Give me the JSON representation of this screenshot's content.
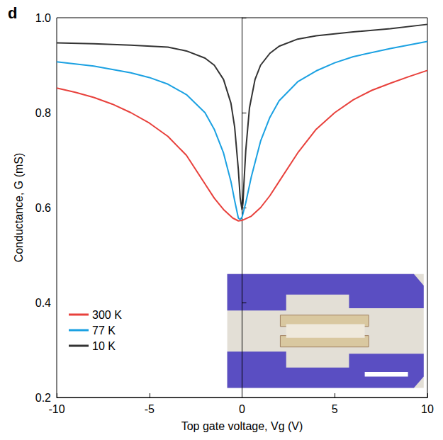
{
  "chart_data": {
    "type": "line",
    "panel_label": "d",
    "x_label": "Top gate voltage, Vg (V)",
    "y_label": "Conductance, G (mS)",
    "xlim": [
      -10,
      10
    ],
    "xticks": [
      -10,
      -5,
      0,
      5,
      10
    ],
    "ylim": [
      0.2,
      1.0
    ],
    "yticks": [
      0.2,
      0.4,
      0.6,
      0.8,
      {
        "value": 1.0,
        "label": "1.0"
      }
    ],
    "grid": false,
    "legend": "lower left",
    "series": [
      {
        "name": "300 K",
        "color": "#e8413c",
        "x": [
          -10,
          -9,
          -8,
          -7,
          -6,
          -5,
          -4,
          -3,
          -2,
          -1.5,
          -1,
          -0.5,
          -0.2,
          0,
          0.5,
          1,
          1.5,
          2,
          3,
          4,
          5,
          6,
          7,
          8,
          9,
          10
        ],
        "values": [
          0.852,
          0.843,
          0.832,
          0.818,
          0.8,
          0.778,
          0.75,
          0.71,
          0.65,
          0.62,
          0.596,
          0.578,
          0.572,
          0.573,
          0.582,
          0.6,
          0.625,
          0.655,
          0.715,
          0.765,
          0.8,
          0.827,
          0.847,
          0.862,
          0.876,
          0.889
        ]
      },
      {
        "name": "77 K",
        "color": "#1ba1e2",
        "x": [
          -10,
          -8,
          -6,
          -5,
          -4,
          -3,
          -2,
          -1.5,
          -1,
          -0.6,
          -0.4,
          -0.2,
          -0.1,
          0,
          0.2,
          0.5,
          1,
          1.5,
          2,
          3,
          4,
          5,
          6,
          8,
          10
        ],
        "values": [
          0.907,
          0.898,
          0.884,
          0.874,
          0.86,
          0.838,
          0.8,
          0.765,
          0.715,
          0.655,
          0.615,
          0.578,
          0.575,
          0.58,
          0.61,
          0.665,
          0.74,
          0.79,
          0.825,
          0.865,
          0.888,
          0.905,
          0.918,
          0.935,
          0.95
        ]
      },
      {
        "name": "10 K",
        "color": "#333333",
        "x": [
          -10,
          -8,
          -6,
          -4,
          -3,
          -2,
          -1.5,
          -1,
          -0.6,
          -0.4,
          -0.2,
          -0.1,
          0,
          0.05,
          0.1,
          0.2,
          0.4,
          0.7,
          1,
          1.5,
          2,
          3,
          4,
          6,
          8,
          10
        ],
        "values": [
          0.947,
          0.945,
          0.942,
          0.938,
          0.93,
          0.915,
          0.9,
          0.87,
          0.82,
          0.77,
          0.68,
          0.62,
          0.595,
          0.61,
          0.65,
          0.72,
          0.81,
          0.87,
          0.9,
          0.925,
          0.94,
          0.955,
          0.962,
          0.97,
          0.977,
          0.986
        ]
      }
    ]
  }
}
